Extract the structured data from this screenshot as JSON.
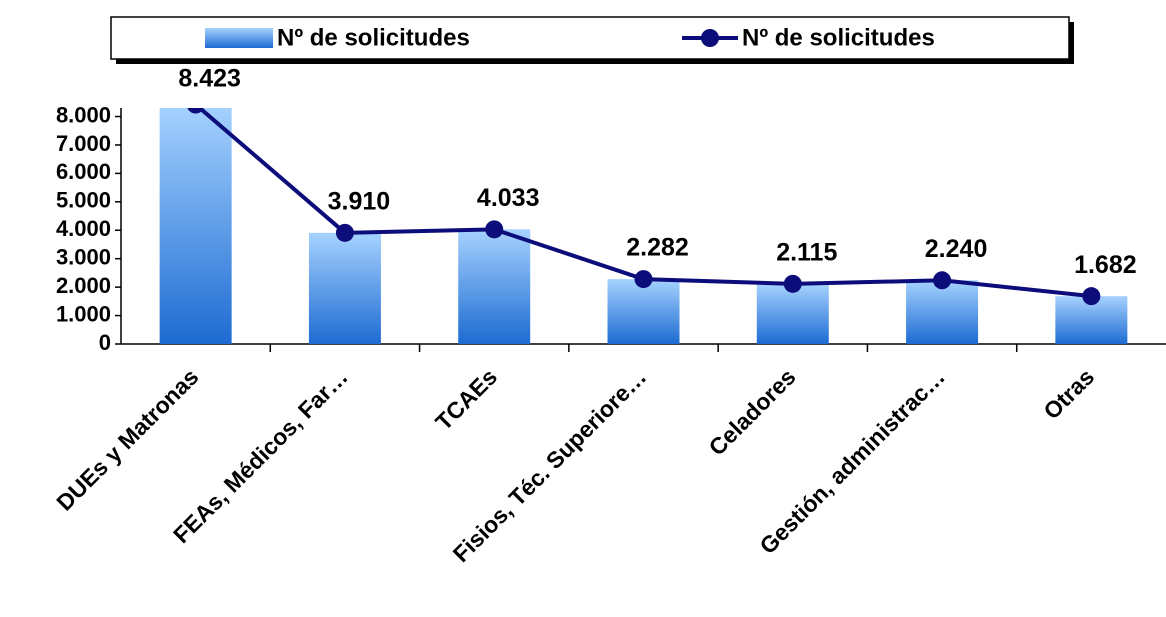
{
  "chart_data": {
    "type": "bar",
    "categories": [
      "DUEs y Matronas",
      "FEAs, Médicos, Far…",
      "TCAEs",
      "Fisios, Téc. Superiore…",
      "Celadores",
      "Gestión, administrac…",
      "Otras"
    ],
    "series": [
      {
        "name": "Nº de solicitudes",
        "type": "bar",
        "color": "#2a78d8",
        "values": [
          8423,
          3910,
          4033,
          2282,
          2115,
          2240,
          1682
        ]
      },
      {
        "name": "Nº de solicitudes",
        "type": "line",
        "color": "#0c0c7a",
        "values": [
          8423,
          3910,
          4033,
          2282,
          2115,
          2240,
          1682
        ],
        "value_labels": [
          "8.423",
          "3.910",
          "4.033",
          "2.282",
          "2.115",
          "2.240",
          "1.682"
        ]
      }
    ],
    "ylim": [
      0,
      8300
    ],
    "yticks": [
      0,
      {
        "value": 1000,
        "label": "1.000"
      },
      {
        "value": 2000,
        "label": "2.000"
      },
      {
        "value": 3000,
        "label": "3.000"
      },
      {
        "value": 4000,
        "label": "4.000"
      },
      {
        "value": 5000,
        "label": "5.000"
      },
      {
        "value": 6000,
        "label": "6.000"
      },
      {
        "value": 7000,
        "label": "7.000"
      },
      {
        "value": 8000,
        "label": "8.000"
      }
    ],
    "legend": "top"
  }
}
